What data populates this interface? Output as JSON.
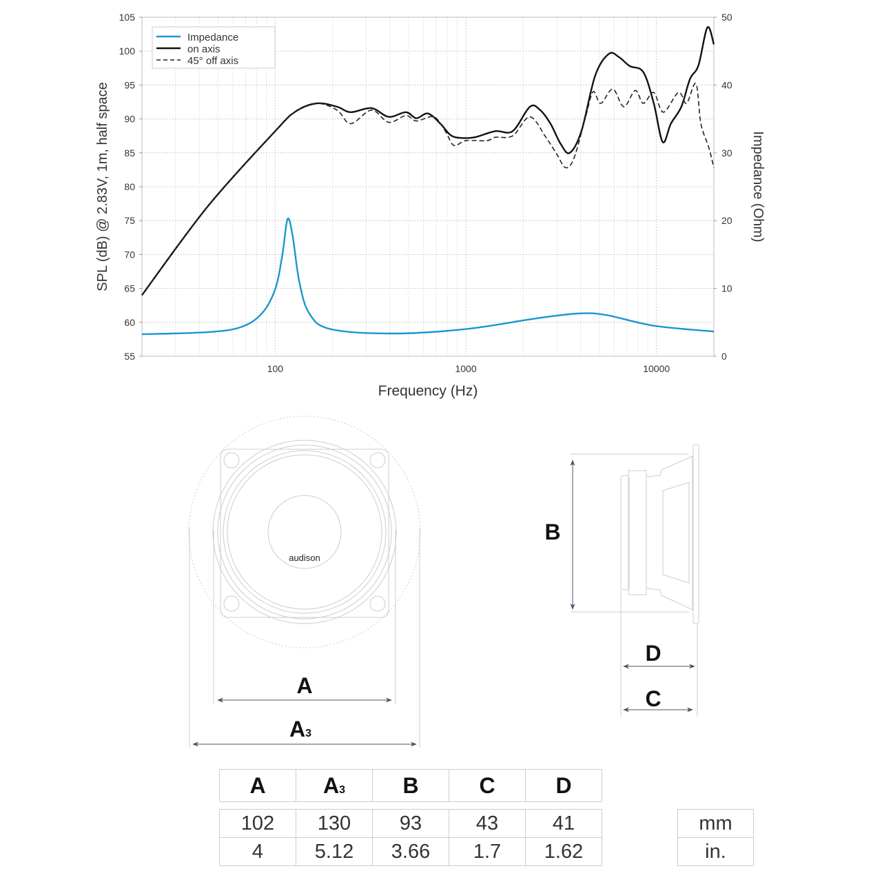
{
  "chart_data": {
    "type": "line",
    "xlabel": "Frequency (Hz)",
    "ylabel": "SPL (dB) @ 2.83V, 1m, half space",
    "y2label": "Impedance (Ohm)",
    "xscale": "log",
    "xlim": [
      20,
      20000
    ],
    "ylim": [
      55,
      105
    ],
    "y2lim": [
      0,
      50
    ],
    "xticks": [
      100,
      1000,
      10000
    ],
    "xtick_labels": [
      "100",
      "1000",
      "10000"
    ],
    "yticks": [
      55,
      60,
      65,
      70,
      75,
      80,
      85,
      90,
      95,
      100,
      105
    ],
    "ytick_labels": [
      "55",
      "60",
      "65",
      "70",
      "75",
      "80",
      "85",
      "90",
      "95",
      "100",
      "105"
    ],
    "y2ticks": [
      0,
      10,
      20,
      30,
      40,
      50
    ],
    "y2tick_labels": [
      "0",
      "10",
      "20",
      "30",
      "40",
      "50"
    ],
    "grid": true,
    "legend_placement": "top-left",
    "series": [
      {
        "name": "Impedance",
        "axis": "right",
        "color": "#1a96d0",
        "style": "solid",
        "x": [
          20,
          44,
          66,
          85,
          100,
          109,
          116,
          123,
          134,
          151,
          195,
          411,
          1000,
          2360,
          3870,
          5400,
          9680,
          20000
        ],
        "y": [
          3.25,
          3.55,
          4.3,
          6.3,
          9.9,
          14.9,
          20.2,
          18.0,
          10.9,
          6.3,
          4.0,
          3.35,
          4.0,
          5.6,
          6.3,
          6.1,
          4.5,
          3.65
        ]
      },
      {
        "name": "on axis",
        "axis": "left",
        "color": "#111111",
        "style": "solid",
        "x": [
          20,
          44,
          100,
          128,
          165,
          211,
          249,
          320,
          394,
          485,
          550,
          633,
          735,
          833,
          944,
          1114,
          1430,
          1760,
          2168,
          2455,
          2780,
          3148,
          3510,
          4040,
          4770,
          5630,
          6380,
          7230,
          8530,
          9680,
          10780,
          11900,
          13500,
          15000,
          16600,
          18500,
          20000
        ],
        "y": [
          64.0,
          77.0,
          88.2,
          91.1,
          92.3,
          91.8,
          91.0,
          91.6,
          90.3,
          91.0,
          90.1,
          90.8,
          89.3,
          87.6,
          87.2,
          87.3,
          88.2,
          88.2,
          91.8,
          91.3,
          89.3,
          86.3,
          85.0,
          88.2,
          96.4,
          99.6,
          99.1,
          97.8,
          96.9,
          92.3,
          86.6,
          89.3,
          91.8,
          95.9,
          97.9,
          103.5,
          101.0
        ]
      },
      {
        "name": "45° off axis",
        "axis": "left",
        "color": "#222222",
        "style": "dashed",
        "x": [
          20,
          44,
          100,
          128,
          165,
          211,
          249,
          320,
          394,
          485,
          550,
          680,
          780,
          865,
          1000,
          1290,
          1430,
          1760,
          2168,
          2630,
          3000,
          3340,
          3700,
          4250,
          4650,
          5100,
          5900,
          6740,
          7740,
          8530,
          9680,
          10870,
          13040,
          14370,
          16100,
          17100,
          18800,
          20000
        ],
        "y": [
          64.0,
          77.0,
          88.2,
          91.1,
          92.3,
          91.3,
          89.3,
          91.3,
          89.5,
          90.5,
          89.7,
          90.3,
          88.2,
          86.1,
          86.8,
          86.8,
          87.3,
          87.5,
          90.3,
          87.3,
          84.8,
          82.8,
          84.3,
          90.3,
          94.0,
          92.3,
          94.4,
          91.8,
          94.2,
          92.3,
          93.9,
          91.0,
          93.9,
          92.3,
          95.2,
          89.3,
          85.8,
          82.8
        ]
      }
    ]
  },
  "diagram": {
    "logo": "audison",
    "labels": {
      "A": "A",
      "A3": "A",
      "A3_sub": "3",
      "B": "B",
      "C": "C",
      "D": "D"
    }
  },
  "table": {
    "headers": [
      {
        "main": "A",
        "sub": ""
      },
      {
        "main": "A",
        "sub": "3"
      },
      {
        "main": "B",
        "sub": ""
      },
      {
        "main": "C",
        "sub": ""
      },
      {
        "main": "D",
        "sub": ""
      }
    ],
    "rows": [
      {
        "values": [
          "102",
          "130",
          "93",
          "43",
          "41"
        ],
        "unit": "mm"
      },
      {
        "values": [
          "4",
          "5.12",
          "3.66",
          "1.7",
          "1.62"
        ],
        "unit": "in."
      }
    ]
  }
}
